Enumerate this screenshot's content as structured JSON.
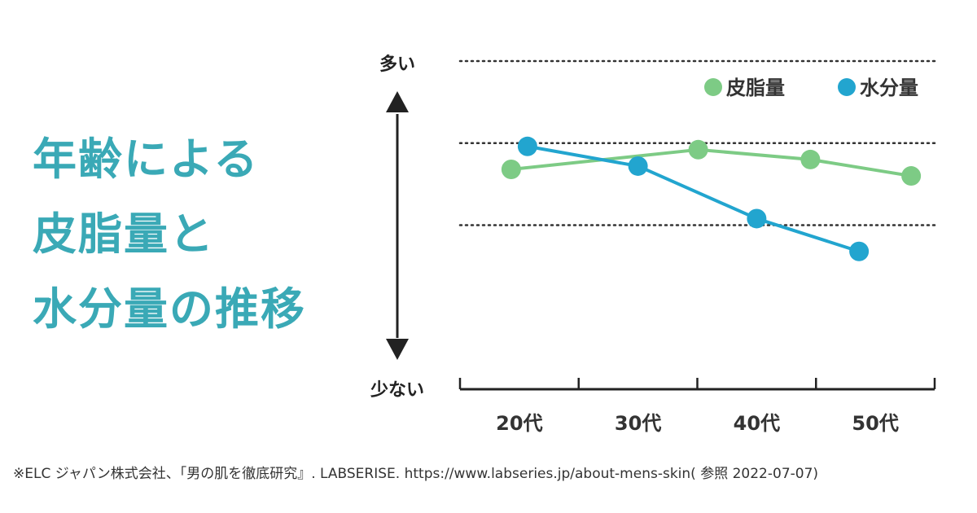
{
  "headline": {
    "line1": "年齢による",
    "line2": "皮脂量と",
    "line3": "水分量の推移"
  },
  "source": "※ELC ジャパン株式会社、「男の肌を徹底研究』. LABSERISE. https://www.labseries.jp/about-mens-skin( 参照 2022-07-07)",
  "chart_data": {
    "type": "line",
    "title": "年齢による皮脂量と水分量の推移",
    "xlabel": "",
    "ylabel": "",
    "y_top_label": "多い",
    "y_bottom_label": "少ない",
    "categories": [
      "20代",
      "30代",
      "40代",
      "50代"
    ],
    "ylim": [
      0,
      100
    ],
    "gridlines": [
      50,
      75,
      100
    ],
    "legend_position": "top-right",
    "series": [
      {
        "name": "皮脂量",
        "color": "#7dcb85",
        "values": [
          67,
          73,
          70,
          65
        ]
      },
      {
        "name": "水分量",
        "color": "#22a5cf",
        "values": [
          74,
          68,
          52,
          42
        ]
      }
    ]
  }
}
